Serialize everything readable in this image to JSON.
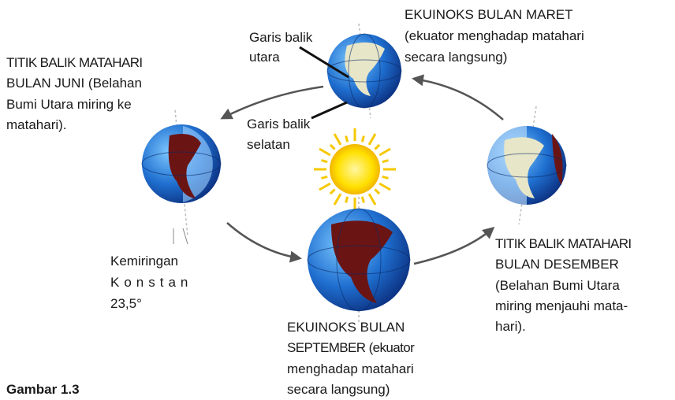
{
  "labels": {
    "maret": [
      "EKUINOKS BULAN MARET",
      "(ekuator menghadap matahari",
      "secara langsung)"
    ],
    "garis_utara": [
      "Garis balik",
      "utara"
    ],
    "garis_selatan": [
      "Garis balik",
      "selatan"
    ],
    "juni": [
      "TITIK BALIK MATAHARI",
      "BULAN JUNI (Belahan",
      "Bumi Utara miring ke",
      "matahari)."
    ],
    "kemiringan": [
      "Kemiringan",
      "Konstan",
      "23,5°"
    ],
    "september": [
      "EKUINOKS BULAN",
      "SEPTEMBER (ekuator",
      "menghadap matahari",
      "secara langsung)"
    ],
    "desember": [
      "TITIK BALIK MATAHARI",
      "BULAN DESEMBER",
      "(Belahan Bumi Utara",
      "miring menjauhi mata-",
      "hari)."
    ]
  },
  "caption": "Gambar 1.3"
}
